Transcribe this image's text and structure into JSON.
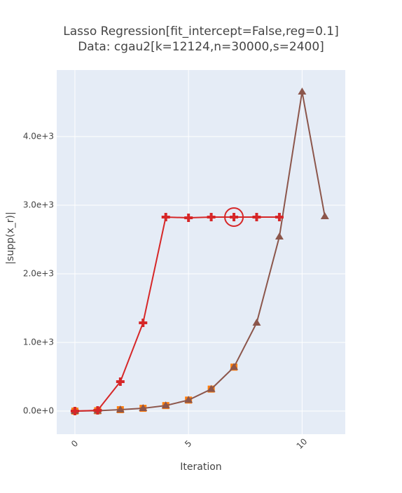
{
  "chart_data": {
    "type": "line",
    "title": [
      "Lasso Regression[fit_intercept=False,reg=0.1]",
      "Data: cgau2[k=12124,n=30000,s=2400]"
    ],
    "x_label": "Iteration",
    "y_label": "|supp(x_r)|",
    "xlim": [
      -0.8,
      11.9
    ],
    "xticks": [
      0,
      5,
      10
    ],
    "ylim": [
      -337,
      4970
    ],
    "yticks": [
      {
        "value": 0,
        "label": "0.0e+0"
      },
      {
        "value": 1000,
        "label": "1.0e+3"
      },
      {
        "value": 2000,
        "label": "2.0e+3"
      },
      {
        "value": 3000,
        "label": "3.0e+3"
      },
      {
        "value": 4000,
        "label": "4.0e+3"
      }
    ],
    "grid": true,
    "background": "#e5ecf6",
    "series": [
      {
        "color": "#ff7f0e",
        "marker": "square",
        "mode": "markers",
        "x": [
          0,
          1,
          2,
          3,
          4,
          5,
          6,
          7
        ],
        "values": [
          0,
          5,
          20,
          40,
          80,
          160,
          320,
          640
        ]
      },
      {
        "color": "#8c564b",
        "marker": "triangle-up",
        "mode": "lines+markers",
        "x": [
          0,
          1,
          2,
          3,
          4,
          5,
          6,
          7,
          8,
          9,
          10,
          11
        ],
        "values": [
          0,
          5,
          20,
          40,
          80,
          160,
          320,
          640,
          1286,
          2541,
          4653,
          2837
        ]
      },
      {
        "color": "#d62728",
        "marker": "cross",
        "mode": "lines+markers",
        "x": [
          0,
          1,
          2,
          3,
          4,
          5,
          6,
          7,
          8,
          9
        ],
        "values": [
          0,
          10,
          429,
          1286,
          2827,
          2816,
          2827,
          2827,
          2827,
          2827
        ]
      }
    ],
    "highlight": {
      "series": 2,
      "index": 7
    }
  }
}
